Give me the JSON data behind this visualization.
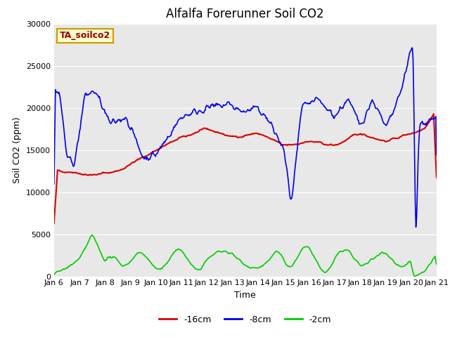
{
  "title": "Alfalfa Forerunner Soil CO2",
  "ylabel": "Soil CO2 (ppm)",
  "xlabel": "Time",
  "xlabels": [
    "Jan 6",
    "Jan 7",
    "Jan 8",
    "Jan 9",
    "Jan 10",
    "Jan 11",
    "Jan 12",
    "Jan 13",
    "Jan 14",
    "Jan 15",
    "Jan 16",
    "Jan 17",
    "Jan 18",
    "Jan 19",
    "Jan 20",
    "Jan 21"
  ],
  "ylim": [
    0,
    30000
  ],
  "yticks": [
    0,
    5000,
    10000,
    15000,
    20000,
    25000,
    30000
  ],
  "bg_color": "#e8e8e8",
  "legend_label": "TA_soilco2",
  "legend_bg": "#ffffcc",
  "legend_border": "#cc9900",
  "legend_text_color": "#990000",
  "line_colors": {
    "red": "#dd0000",
    "blue": "#0000ee",
    "green": "#00cc00"
  },
  "line_labels": [
    "-16cm",
    "-8cm",
    "-2cm"
  ],
  "title_fontsize": 12,
  "axis_label_fontsize": 9,
  "tick_fontsize": 8
}
